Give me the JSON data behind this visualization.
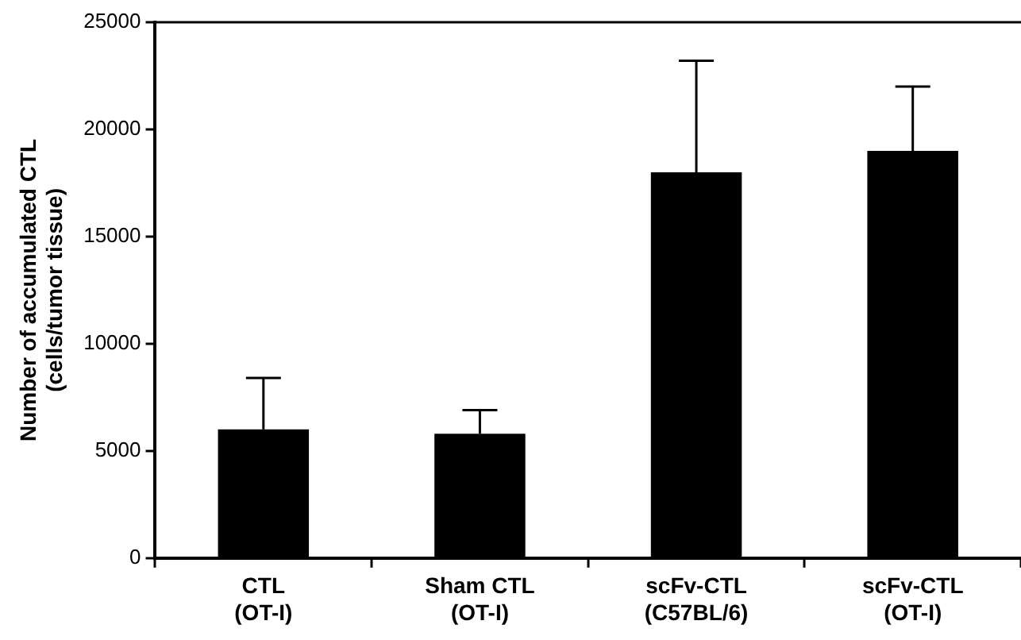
{
  "chart_data": {
    "type": "bar",
    "ylabel": "Number of accumulated CTL\n(cells/tumor tissue)",
    "categories": [
      "CTL\n(OT-I)",
      "Sham CTL\n(OT-I)",
      "scFv-CTL\n(C57BL/6)",
      "scFv-CTL\n(OT-I)"
    ],
    "values": [
      6000,
      5800,
      18000,
      19000
    ],
    "color": "#000000",
    "errors": [
      [
        6000,
        8400
      ],
      [
        5800,
        6900
      ],
      [
        18000,
        23200
      ],
      [
        19000,
        22000
      ]
    ],
    "ylim": [
      0,
      25000
    ],
    "yticks": [
      0,
      5000,
      10000,
      15000,
      20000,
      25000
    ],
    "grid": false,
    "legend": false
  }
}
